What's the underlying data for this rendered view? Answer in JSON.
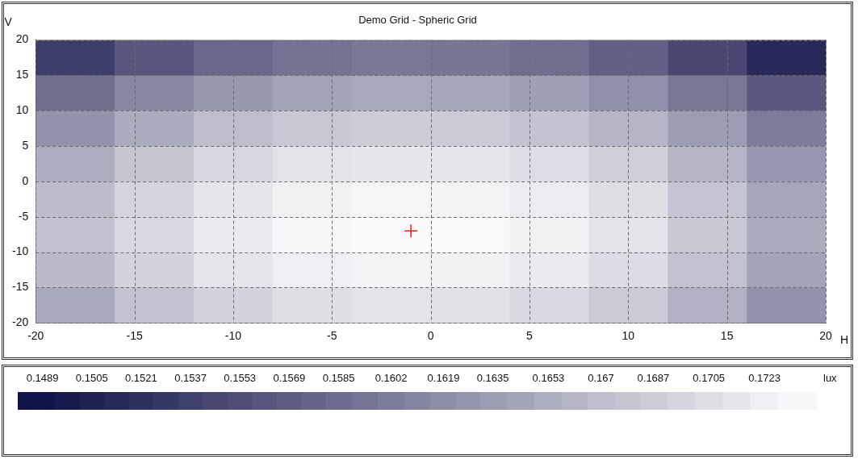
{
  "chart_data": {
    "type": "heatmap",
    "title": "Demo Grid - Spheric Grid",
    "xlabel": "H",
    "ylabel": "V",
    "clabel": "lux",
    "x": [
      -18,
      -14,
      -10,
      -6,
      -2,
      2,
      6,
      10,
      14,
      18
    ],
    "y": [
      17.5,
      12.5,
      7.5,
      2.5,
      -2.5,
      -7.5,
      -12.5,
      -17.5
    ],
    "cells": [
      [
        0.1536,
        0.1562,
        0.158,
        0.1592,
        0.1597,
        0.1595,
        0.1587,
        0.1572,
        0.1545,
        0.1513
      ],
      [
        0.1587,
        0.1613,
        0.1631,
        0.1643,
        0.1648,
        0.1646,
        0.1638,
        0.1623,
        0.1596,
        0.1564
      ],
      [
        0.1626,
        0.1652,
        0.167,
        0.1682,
        0.1687,
        0.1685,
        0.1677,
        0.1662,
        0.1635,
        0.1603
      ],
      [
        0.1653,
        0.1679,
        0.1697,
        0.1709,
        0.1714,
        0.1712,
        0.1704,
        0.1689,
        0.1662,
        0.163
      ],
      [
        0.1669,
        0.1695,
        0.1713,
        0.1725,
        0.173,
        0.1728,
        0.172,
        0.1705,
        0.1678,
        0.1646
      ],
      [
        0.1674,
        0.17,
        0.1718,
        0.173,
        0.1735,
        0.1733,
        0.1725,
        0.171,
        0.1683,
        0.1651
      ],
      [
        0.1667,
        0.1693,
        0.1711,
        0.1723,
        0.1728,
        0.1726,
        0.1718,
        0.1703,
        0.1676,
        0.1644
      ],
      [
        0.1649,
        0.1675,
        0.1693,
        0.1705,
        0.171,
        0.1708,
        0.17,
        0.1685,
        0.1658,
        0.1626
      ]
    ],
    "xlim": [
      -20,
      20
    ],
    "ylim": [
      -20,
      20
    ],
    "xticks": [
      -20,
      -15,
      -10,
      -5,
      0,
      5,
      10,
      15,
      20
    ],
    "yticks": [
      -20,
      -15,
      -10,
      -5,
      0,
      5,
      10,
      15,
      20
    ],
    "clim": [
      0.1481,
      0.174
    ],
    "cticks": [
      0.1489,
      0.1505,
      0.1521,
      0.1537,
      0.1553,
      0.1569,
      0.1585,
      0.1602,
      0.1619,
      0.1635,
      0.1653,
      0.167,
      0.1687,
      0.1705,
      0.1723
    ],
    "grid": true,
    "line_style": "dashed",
    "series": [
      {
        "type": "scatter",
        "marker": "cross",
        "color": "#e02020",
        "x": [
          -1
        ],
        "values": [
          -7
        ]
      }
    ]
  }
}
